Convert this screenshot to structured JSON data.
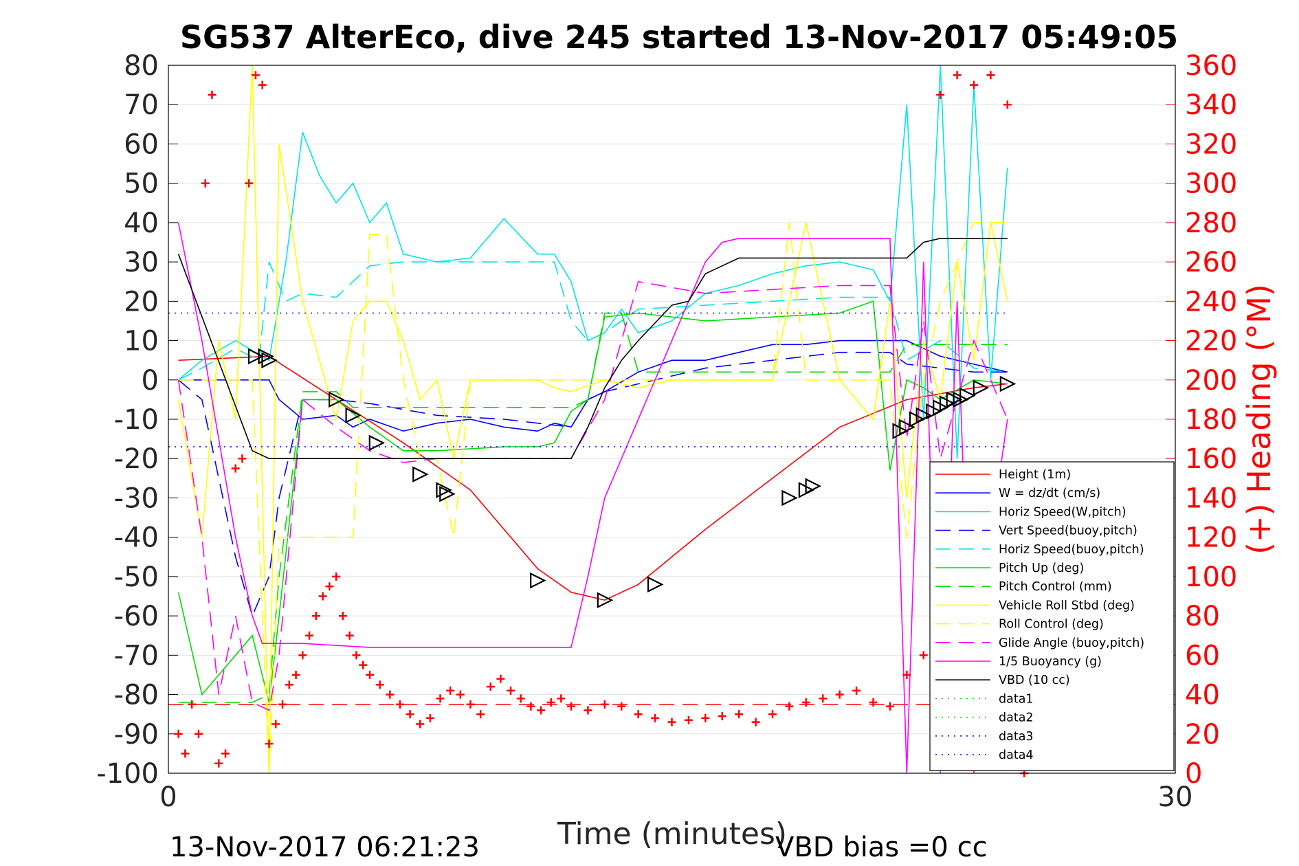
{
  "chart_data": {
    "type": "line",
    "title": "SG537 AlterEco, dive 245 started 13-Nov-2017 05:49:05",
    "xlabel": "Time (minutes)",
    "ylabel_right": "(+) Heading (°M)",
    "xlim": [
      0,
      30
    ],
    "ylim_left": [
      -100,
      80
    ],
    "ylim_right": [
      0,
      360
    ],
    "xticks": [
      "0",
      "30"
    ],
    "yticks_left": [
      "80",
      "70",
      "60",
      "50",
      "40",
      "30",
      "20",
      "10",
      "0",
      "-10",
      "-20",
      "-30",
      "-40",
      "-50",
      "-60",
      "-70",
      "-80",
      "-90",
      "-100"
    ],
    "yticks_right": [
      "360",
      "340",
      "320",
      "300",
      "280",
      "260",
      "240",
      "220",
      "200",
      "180",
      "160",
      "140",
      "120",
      "100",
      "80",
      "60",
      "40",
      "20",
      "0"
    ],
    "grid": true,
    "legend_position": "lower-right",
    "colors": {
      "right_axis": "#ff0000"
    },
    "legend": [
      {
        "label": "Height (1m)",
        "color": "#ff0000",
        "dash": "solid"
      },
      {
        "label": "W = dz/dt (cm/s)",
        "color": "#0000ff",
        "dash": "solid"
      },
      {
        "label": "Horiz Speed(W,pitch)",
        "color": "#00e5e5",
        "dash": "solid"
      },
      {
        "label": "Vert Speed(buoy,pitch)",
        "color": "#0000ff",
        "dash": "dashed"
      },
      {
        "label": "Horiz Speed(buoy,pitch)",
        "color": "#00e5e5",
        "dash": "dashed"
      },
      {
        "label": "Pitch Up (deg)",
        "color": "#00dd00",
        "dash": "solid"
      },
      {
        "label": "Pitch Control (mm)",
        "color": "#00dd00",
        "dash": "dashed"
      },
      {
        "label": "Vehicle Roll Stbd (deg)",
        "color": "#ffff00",
        "dash": "solid"
      },
      {
        "label": "Roll Control (deg)",
        "color": "#ffff00",
        "dash": "dashed"
      },
      {
        "label": "Glide Angle (buoy,pitch)",
        "color": "#ff00ff",
        "dash": "dashed"
      },
      {
        "label": "1/5 Buoyancy (g)",
        "color": "#ff00ff",
        "dash": "solid"
      },
      {
        "label": "VBD (10 cc)",
        "color": "#000000",
        "dash": "solid"
      },
      {
        "label": "data1",
        "color": "#00dd00",
        "dash": "dotted"
      },
      {
        "label": "data2",
        "color": "#00dd00",
        "dash": "dotted"
      },
      {
        "label": "data3",
        "color": "#0000ff",
        "dash": "dotted"
      },
      {
        "label": "data4",
        "color": "#0000ff",
        "dash": "dotted"
      }
    ],
    "series": [
      {
        "name": "Height (1m)",
        "x": [
          0.3,
          3.0,
          5.0,
          7.0,
          9.0,
          11.0,
          12.0,
          13.0,
          14.0,
          16.0,
          18.0,
          20.0,
          22.0,
          24.0,
          25.0
        ],
        "y": [
          5,
          6,
          -5,
          -16,
          -28,
          -48,
          -54,
          -56,
          -52,
          -38,
          -25,
          -12,
          -5,
          -2,
          -1
        ]
      },
      {
        "name": "W = dz/dt (cm/s)",
        "x": [
          0.3,
          2.5,
          3.0,
          3.3,
          4.0,
          5.0,
          5.5,
          6.0,
          7.0,
          8.0,
          9.0,
          10.0,
          11.0,
          11.5,
          12.0,
          12.5,
          13.0,
          14.0,
          15.0,
          16.0,
          17.0,
          18.0,
          19.0,
          20.0,
          21.0,
          22.0,
          23.0,
          24.0,
          25.0
        ],
        "y": [
          0,
          0,
          0,
          -5,
          -10,
          -9,
          -12,
          -10,
          -13,
          -11,
          -10,
          -12,
          -13,
          -11,
          -12,
          -5,
          -3,
          2,
          5,
          5,
          7,
          9,
          9,
          10,
          10,
          10,
          6,
          4,
          2
        ]
      },
      {
        "name": "Horiz Speed(W,pitch)",
        "x": [
          0.3,
          1.0,
          2.0,
          3.0,
          3.5,
          4.0,
          4.5,
          5.0,
          5.5,
          6.0,
          6.5,
          7.0,
          8.0,
          9.0,
          10.0,
          11.0,
          11.5,
          12.0,
          12.5,
          13.0,
          13.5,
          14.0,
          15.0,
          16.0,
          17.0,
          18.0,
          19.0,
          20.0,
          21.0,
          21.5,
          22.0,
          22.5,
          23.0,
          23.5,
          24.0,
          24.5,
          25.0
        ],
        "y": [
          0,
          5,
          10,
          5,
          30,
          63,
          52,
          45,
          50,
          40,
          45,
          32,
          30,
          31,
          41,
          32,
          32,
          25,
          10,
          12,
          18,
          12,
          15,
          22,
          24,
          27,
          29,
          30,
          28,
          20,
          70,
          -10,
          80,
          -20,
          75,
          0,
          54
        ]
      },
      {
        "name": "Vert Speed(buoy,pitch)",
        "x": [
          0.3,
          1.0,
          2.0,
          2.5,
          3.0,
          3.3,
          4.0,
          5.0,
          6.0,
          8.0,
          10.0,
          12.0,
          12.5,
          13.0,
          14.0,
          16.0,
          18.0,
          20.0,
          21.5,
          22.0,
          23.0,
          24.0,
          25.0
        ],
        "y": [
          0,
          -5,
          -45,
          -60,
          -50,
          -30,
          -5,
          -5,
          -6,
          -9,
          -10,
          -12,
          -5,
          -3,
          -1,
          3,
          5,
          7,
          7,
          4,
          3,
          2,
          2
        ]
      },
      {
        "name": "Horiz Speed(buoy,pitch)",
        "x": [
          0.3,
          1.0,
          2.0,
          2.7,
          3.0,
          3.5,
          4.0,
          5.0,
          6.0,
          7.0,
          8.0,
          10.0,
          11.0,
          11.5,
          12.0,
          12.5,
          13.0,
          14.0,
          16.0,
          18.0,
          20.0,
          21.5,
          22.0,
          23.0,
          24.0,
          25.0
        ],
        "y": [
          0,
          3,
          8,
          5,
          30,
          20,
          22,
          21,
          29,
          30,
          30,
          30,
          30,
          30,
          15,
          10,
          12,
          18,
          19,
          20,
          21,
          21,
          5,
          10,
          3,
          2
        ]
      },
      {
        "name": "Pitch Up (deg)",
        "x": [
          0.3,
          1.0,
          2.0,
          2.5,
          3.0,
          3.3,
          4.0,
          5.0,
          6.0,
          7.0,
          8.0,
          10.0,
          11.0,
          11.5,
          12.0,
          12.5,
          13.0,
          14.0,
          16.0,
          18.0,
          20.0,
          21.0,
          21.5,
          22.0,
          22.5,
          23.0,
          24.0,
          25.0
        ],
        "y": [
          -54,
          -80,
          -70,
          -65,
          -82,
          -60,
          -5,
          -5,
          -12,
          -18,
          -18,
          -17,
          -17,
          -16,
          -8,
          -5,
          16,
          17,
          15,
          16,
          17,
          20,
          -23,
          0,
          -2,
          -5,
          0,
          -1
        ]
      },
      {
        "name": "Pitch Control (mm)",
        "x": [
          0.3,
          2.0,
          2.5,
          3.0,
          3.3,
          4.0,
          5.0,
          5.5,
          6.0,
          12.0,
          12.5,
          13.0,
          13.5,
          14.0,
          21.5,
          22.0,
          25.0
        ],
        "y": [
          -82,
          -82,
          -82,
          -80,
          -50,
          -3,
          -3,
          -7,
          -7,
          -7,
          -5,
          17,
          17,
          2,
          2,
          9,
          9
        ]
      },
      {
        "name": "Vehicle Roll Stbd (deg)",
        "x": [
          0.3,
          1.0,
          1.5,
          2.0,
          2.5,
          3.0,
          3.3,
          4.0,
          5.0,
          5.5,
          6.0,
          6.5,
          7.0,
          7.5,
          8.0,
          8.5,
          9.0,
          10.0,
          11.0,
          11.5,
          12.0,
          13.0,
          14.0,
          15.0,
          16.0,
          18.0,
          19.0,
          20.0,
          21.0,
          21.5,
          22.0,
          22.5,
          23.0,
          23.5,
          24.0,
          24.5,
          25.0
        ],
        "y": [
          -5,
          -40,
          10,
          -10,
          80,
          -100,
          60,
          20,
          -10,
          15,
          20,
          20,
          10,
          -5,
          0,
          -20,
          0,
          0,
          0,
          -2,
          -3,
          0,
          -2,
          0,
          0,
          0,
          40,
          0,
          -10,
          20,
          -30,
          10,
          -5,
          30,
          5,
          40,
          20
        ]
      },
      {
        "name": "Roll Control (deg)",
        "x": [
          0.3,
          2.5,
          3.0,
          3.3,
          4.0,
          4.5,
          5.0,
          5.5,
          6.0,
          6.5,
          7.0,
          7.5,
          8.0,
          8.5,
          9.0,
          12.0,
          18.0,
          18.5,
          19.0,
          21.5,
          22.0,
          22.5,
          23.0,
          24.0,
          25.0
        ],
        "y": [
          0,
          0,
          -100,
          -40,
          -40,
          -40,
          -40,
          -40,
          37,
          37,
          0,
          -20,
          -20,
          -40,
          0,
          0,
          0,
          40,
          0,
          0,
          -40,
          0,
          20,
          40,
          40
        ]
      },
      {
        "name": "Glide Angle (buoy,pitch)",
        "x": [
          0.3,
          1.0,
          1.5,
          2.0,
          2.5,
          3.0,
          3.3,
          4.0,
          5.0,
          6.0,
          7.0,
          8.0,
          10.0,
          12.0,
          13.0,
          14.0,
          16.0,
          18.0,
          20.0,
          21.5,
          22.0,
          22.5,
          23.0,
          24.0,
          25.0
        ],
        "y": [
          0,
          -40,
          -80,
          -60,
          -82,
          -84,
          -70,
          -5,
          -12,
          -18,
          -21,
          -20,
          -20,
          -20,
          -5,
          25,
          22,
          23,
          24,
          24,
          -15,
          15,
          -20,
          10,
          -10
        ]
      },
      {
        "name": "1/5 Buoyancy (g)",
        "x": [
          0.3,
          1.0,
          2.0,
          2.5,
          2.8,
          3.0,
          3.3,
          4.0,
          6.0,
          8.0,
          10.0,
          11.0,
          12.0,
          12.5,
          13.0,
          14.0,
          14.5,
          15.0,
          15.5,
          16.0,
          16.5,
          17.0,
          18.0,
          19.0,
          20.0,
          21.0,
          21.5,
          22.0,
          22.5,
          23.0,
          23.5,
          24.0,
          24.5,
          25.0
        ],
        "y": [
          40,
          10,
          -40,
          -60,
          -67,
          -67,
          -67,
          -67,
          -68,
          -68,
          -68,
          -68,
          -68,
          -50,
          -30,
          -10,
          0,
          10,
          20,
          30,
          35,
          36,
          36,
          36,
          36,
          36,
          36,
          -100,
          30,
          -100,
          20,
          -100,
          -40,
          -10
        ]
      },
      {
        "name": "VBD (10 cc)",
        "x": [
          0.3,
          2.5,
          3.0,
          3.3,
          4.0,
          6.0,
          8.0,
          10.0,
          12.0,
          12.5,
          13.0,
          13.5,
          14.0,
          15.0,
          15.5,
          16.0,
          16.5,
          17.0,
          18.0,
          20.0,
          21.0,
          22.0,
          22.5,
          23.0,
          24.0,
          25.0
        ],
        "y": [
          32,
          -18,
          -20,
          -20,
          -20,
          -20,
          -20,
          -20,
          -20,
          -12,
          -2,
          5,
          10,
          19,
          20,
          27,
          29,
          31,
          31,
          31,
          31,
          31,
          35,
          36,
          36,
          36
        ]
      },
      {
        "name": "data3",
        "x": [
          0,
          25
        ],
        "y": [
          17,
          17
        ]
      },
      {
        "name": "data4",
        "x": [
          0,
          25
        ],
        "y": [
          -17,
          -17
        ]
      }
    ],
    "reference_lines": [
      {
        "axis": "right",
        "color": "#ff0000",
        "dash": "dashed",
        "value": 35
      }
    ],
    "markers": {
      "x": [
        2.6,
        2.9,
        3.0,
        5.0,
        5.5,
        6.2,
        7.5,
        8.2,
        8.3,
        11.0,
        13.0,
        14.5,
        18.5,
        19.0,
        19.2,
        21.8,
        22.0,
        22.3,
        22.5,
        22.8,
        23.0,
        23.2,
        23.4,
        23.6,
        23.8,
        24.2,
        25.0
      ],
      "y": [
        6,
        6,
        5,
        -5,
        -9,
        -16,
        -24,
        -28,
        -29,
        -51,
        -56,
        -52,
        -30,
        -28,
        -27,
        -13,
        -12,
        -10,
        -9,
        -8,
        -7,
        -6,
        -5,
        -5,
        -4,
        -2,
        -1
      ]
    },
    "heading_points": {
      "x": [
        0.3,
        0.5,
        0.7,
        0.9,
        1.1,
        1.3,
        1.5,
        1.7,
        2.0,
        2.2,
        2.4,
        2.6,
        2.8,
        3.0,
        3.2,
        3.4,
        3.6,
        3.8,
        4.0,
        4.2,
        4.4,
        4.6,
        4.8,
        5.0,
        5.2,
        5.4,
        5.6,
        5.8,
        6.0,
        6.3,
        6.6,
        6.9,
        7.2,
        7.5,
        7.8,
        8.1,
        8.4,
        8.7,
        9.0,
        9.3,
        9.6,
        9.9,
        10.2,
        10.5,
        10.8,
        11.1,
        11.4,
        11.7,
        12.0,
        12.5,
        13.0,
        13.5,
        14.0,
        14.5,
        15.0,
        15.5,
        16.0,
        16.5,
        17.0,
        17.5,
        18.0,
        18.5,
        19.0,
        19.5,
        20.0,
        20.5,
        21.0,
        21.5,
        22.0,
        22.5,
        23.0,
        23.5,
        24.0,
        24.5,
        25.0,
        25.5
      ],
      "y": [
        20,
        10,
        35,
        20,
        300,
        345,
        5,
        10,
        155,
        160,
        300,
        355,
        350,
        15,
        25,
        35,
        45,
        50,
        60,
        70,
        80,
        90,
        95,
        100,
        80,
        70,
        60,
        55,
        50,
        45,
        40,
        35,
        30,
        25,
        28,
        38,
        42,
        40,
        35,
        30,
        44,
        48,
        42,
        38,
        34,
        32,
        36,
        38,
        34,
        32,
        35,
        34,
        30,
        28,
        26,
        27,
        28,
        29,
        30,
        26,
        30,
        34,
        36,
        38,
        40,
        42,
        36,
        34,
        50,
        60,
        345,
        355,
        350,
        355,
        340,
        0
      ]
    }
  },
  "footer": {
    "timestamp": "13-Nov-2017 06:21:23",
    "vbd_bias": "VBD bias =0 cc"
  }
}
